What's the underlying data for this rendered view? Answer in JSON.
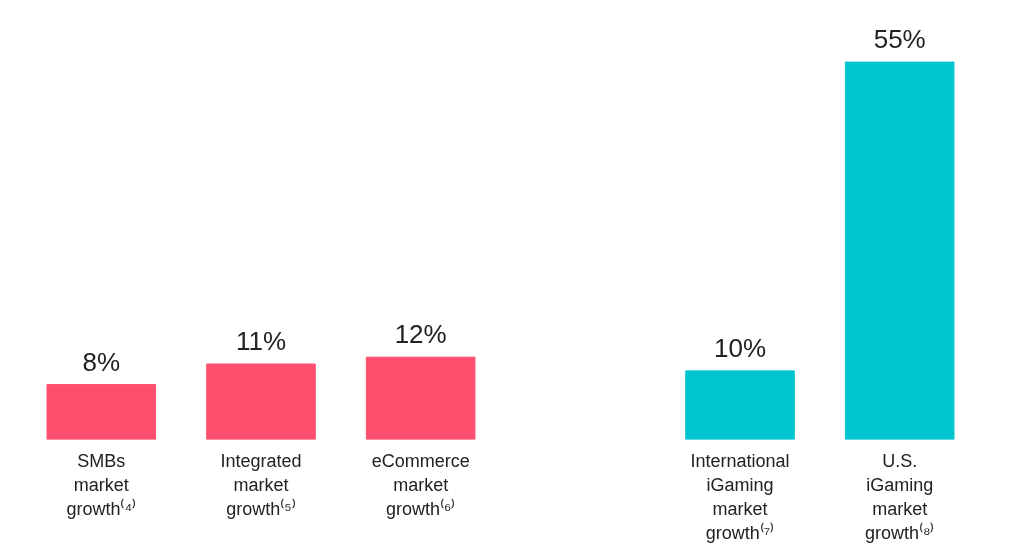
{
  "chart_data": {
    "type": "bar",
    "categories": [
      "SMBs\nmarket\ngrowth⁽⁴⁾",
      "Integrated\nmarket\ngrowth⁽⁵⁾",
      "eCommerce\nmarket\ngrowth⁽⁶⁾",
      null,
      "International\niGaming\nmarket\ngrowth⁽⁷⁾",
      "U.S.\niGaming\nmarket\ngrowth⁽⁸⁾"
    ],
    "values": [
      8,
      11,
      12,
      null,
      10,
      55
    ],
    "colors": [
      "#ff4f6e",
      "#ff4f6e",
      "#ff4f6e",
      null,
      "#00c5cf",
      "#00c5cf"
    ],
    "value_labels": [
      "8%",
      "11%",
      "12%",
      null,
      "10%",
      "55%"
    ],
    "grid": false
  }
}
